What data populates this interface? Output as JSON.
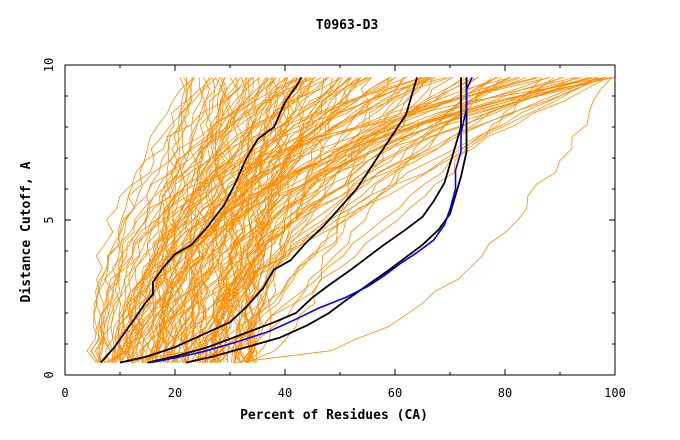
{
  "chart_data": {
    "type": "line",
    "title": "T0963-D3",
    "xlabel": "Percent of Residues (CA)",
    "ylabel": "Distance Cutoff, A",
    "xlim": [
      0,
      100
    ],
    "ylim": [
      0,
      10
    ],
    "x_ticks": [
      "0",
      "20",
      "40",
      "60",
      "80",
      "100"
    ],
    "y_ticks": [
      "0",
      "5",
      "10"
    ],
    "colors": {
      "background_curves": "#ff8c00",
      "reference_curves": "#000000",
      "highlight_curve": "#0000ff"
    },
    "background_curves": "approximately 150 orange GDT curves spanning x from about 5 to 100",
    "series": [
      {
        "color": "#000000",
        "points": [
          [
            6.5,
            0.4
          ],
          [
            9,
            0.9
          ],
          [
            11,
            1.4
          ],
          [
            13,
            1.9
          ],
          [
            14.5,
            2.3
          ],
          [
            16,
            2.6
          ],
          [
            16,
            3.0
          ],
          [
            18,
            3.5
          ],
          [
            20,
            3.9
          ],
          [
            23,
            4.2
          ],
          [
            26,
            4.8
          ],
          [
            29,
            5.5
          ],
          [
            31,
            6.2
          ],
          [
            33,
            7.0
          ],
          [
            35,
            7.6
          ],
          [
            38,
            8.0
          ],
          [
            40,
            8.8
          ],
          [
            42,
            9.3
          ],
          [
            43,
            9.6
          ]
        ]
      },
      {
        "color": "#000000",
        "points": [
          [
            10,
            0.4
          ],
          [
            15,
            0.6
          ],
          [
            20,
            0.9
          ],
          [
            25,
            1.3
          ],
          [
            30,
            1.7
          ],
          [
            33,
            2.2
          ],
          [
            36,
            2.8
          ],
          [
            38,
            3.4
          ],
          [
            41,
            3.7
          ],
          [
            44,
            4.3
          ],
          [
            47,
            4.8
          ],
          [
            50,
            5.4
          ],
          [
            53,
            6.0
          ],
          [
            56,
            6.8
          ],
          [
            59,
            7.6
          ],
          [
            62,
            8.4
          ],
          [
            63,
            9.0
          ],
          [
            64,
            9.6
          ]
        ]
      },
      {
        "color": "#000000",
        "points": [
          [
            15,
            0.4
          ],
          [
            20,
            0.6
          ],
          [
            26,
            0.9
          ],
          [
            32,
            1.3
          ],
          [
            38,
            1.7
          ],
          [
            42,
            2.0
          ],
          [
            45,
            2.5
          ],
          [
            48,
            2.9
          ],
          [
            52,
            3.4
          ],
          [
            55,
            3.8
          ],
          [
            58,
            4.2
          ],
          [
            62,
            4.7
          ],
          [
            65,
            5.1
          ],
          [
            67,
            5.6
          ],
          [
            69,
            6.2
          ],
          [
            70,
            6.8
          ],
          [
            71,
            7.4
          ],
          [
            72,
            8.0
          ],
          [
            72,
            9.0
          ],
          [
            72,
            9.6
          ]
        ]
      },
      {
        "color": "#000000",
        "points": [
          [
            22,
            0.4
          ],
          [
            27,
            0.6
          ],
          [
            33,
            0.9
          ],
          [
            39,
            1.2
          ],
          [
            44,
            1.6
          ],
          [
            48,
            2.0
          ],
          [
            51,
            2.4
          ],
          [
            55,
            2.9
          ],
          [
            59,
            3.4
          ],
          [
            62,
            3.8
          ],
          [
            65,
            4.2
          ],
          [
            68,
            4.7
          ],
          [
            70,
            5.2
          ],
          [
            71,
            5.8
          ],
          [
            72,
            6.4
          ],
          [
            73,
            7.2
          ],
          [
            73,
            8.0
          ],
          [
            73,
            8.8
          ],
          [
            73,
            9.6
          ]
        ]
      },
      {
        "color": "#0000ff",
        "points": [
          [
            15.5,
            0.4
          ],
          [
            20,
            0.55
          ],
          [
            25,
            0.75
          ],
          [
            31,
            1.05
          ],
          [
            37,
            1.4
          ],
          [
            42,
            1.8
          ],
          [
            46,
            2.15
          ],
          [
            51,
            2.5
          ],
          [
            55,
            2.85
          ],
          [
            58,
            3.2
          ],
          [
            61,
            3.6
          ],
          [
            64,
            3.95
          ],
          [
            67,
            4.35
          ],
          [
            69,
            4.85
          ],
          [
            70,
            5.35
          ],
          [
            71,
            6.0
          ],
          [
            71,
            6.6
          ],
          [
            72,
            7.2
          ],
          [
            72,
            7.8
          ],
          [
            73,
            8.6
          ],
          [
            73,
            9.2
          ],
          [
            74,
            9.6
          ]
        ]
      }
    ]
  }
}
